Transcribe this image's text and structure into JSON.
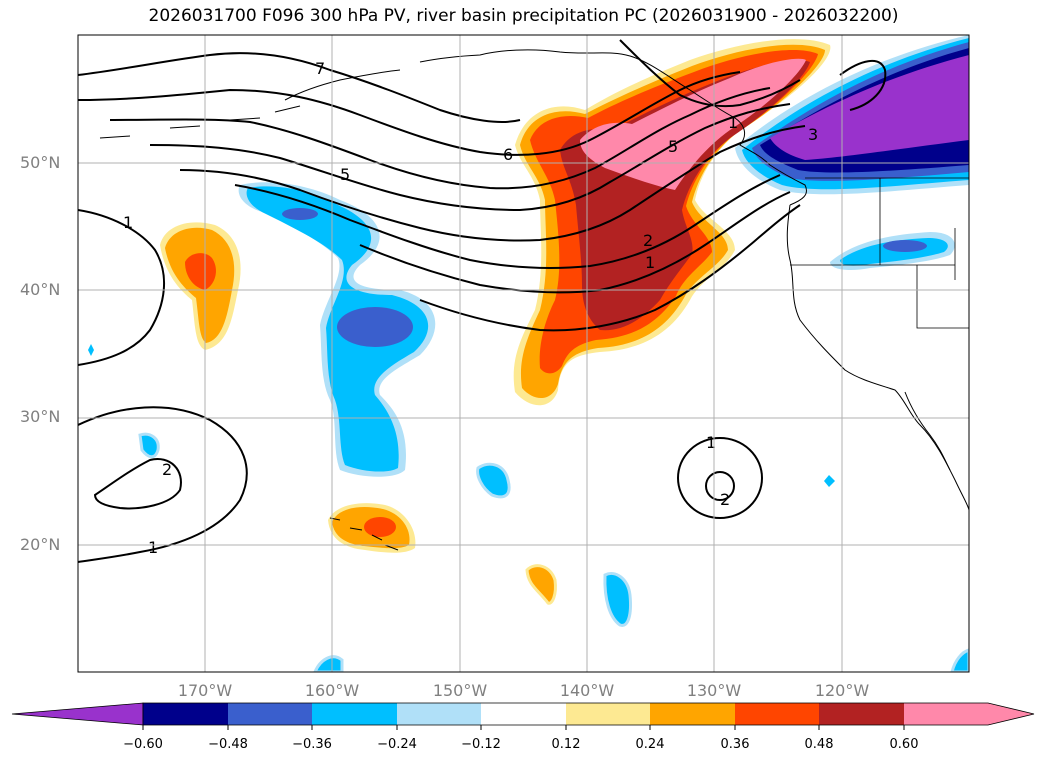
{
  "title": "2026031700 F096 300 hPa PV, river basin precipitation PC (2026031900 - 2026032200)",
  "map": {
    "lat_labels": [
      "50°N",
      "40°N",
      "30°N",
      "20°N"
    ],
    "lon_labels": [
      "170°W",
      "160°W",
      "150°W",
      "140°W",
      "130°W",
      "120°W"
    ],
    "contour_labels": [
      "1",
      "5",
      "6",
      "5",
      "3",
      "2",
      "1",
      "1",
      "2",
      "1",
      "2",
      "1",
      "7"
    ]
  },
  "colorbar": {
    "ticks": [
      "−0.60",
      "−0.48",
      "−0.36",
      "−0.24",
      "−0.12",
      "0.12",
      "0.24",
      "0.36",
      "0.48",
      "0.60"
    ],
    "colors": [
      "#9932cc",
      "#00008b",
      "#3a5fcd",
      "#00bfff",
      "#b0e0f8",
      "#ffffff",
      "#fde992",
      "#ffa500",
      "#ff4500",
      "#b22222",
      "#ff88aa"
    ]
  }
}
